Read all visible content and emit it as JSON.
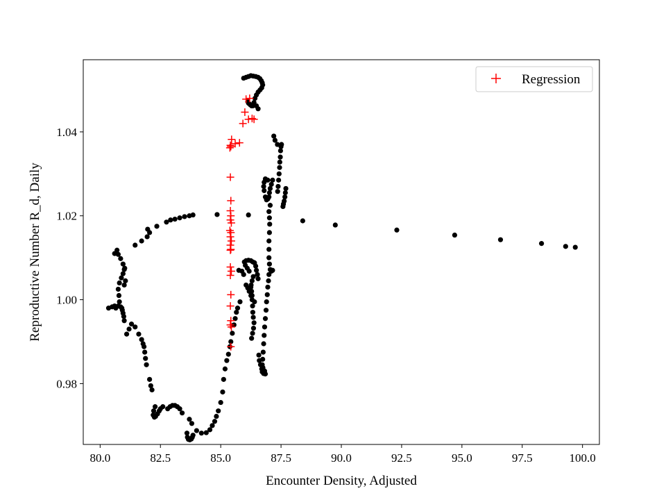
{
  "chart_data": {
    "type": "scatter",
    "title": "",
    "xlabel": "Encounter Density, Adjusted",
    "ylabel": "Reproductive Number R_d, Daily",
    "xlim": [
      79.3,
      100.7
    ],
    "ylim": [
      0.9655,
      1.0572
    ],
    "xticks": [
      80.0,
      82.5,
      85.0,
      87.5,
      90.0,
      92.5,
      95.0,
      97.5,
      100.0
    ],
    "xtick_labels": [
      "80.0",
      "82.5",
      "85.0",
      "87.5",
      "90.0",
      "92.5",
      "95.0",
      "97.5",
      "100.0"
    ],
    "yticks": [
      0.98,
      1.0,
      1.02,
      1.04
    ],
    "ytick_labels": [
      "0.98",
      "1.00",
      "1.02",
      "1.04"
    ],
    "grid": false,
    "legend": {
      "position": "top-right",
      "entries": [
        "Regression"
      ]
    },
    "series": [
      {
        "marker": "circle",
        "color": "#000000",
        "points": [
          [
            99.7,
            1.0125
          ],
          [
            99.3,
            1.0127
          ],
          [
            98.3,
            1.0134
          ],
          [
            96.6,
            1.0143
          ],
          [
            94.7,
            1.0154
          ],
          [
            92.3,
            1.0166
          ],
          [
            89.75,
            1.0178
          ],
          [
            88.4,
            1.0188
          ],
          [
            87.7,
            1.0265
          ],
          [
            87.68,
            1.0255
          ],
          [
            87.66,
            1.0245
          ],
          [
            87.63,
            1.0235
          ],
          [
            87.6,
            1.0228
          ],
          [
            87.58,
            1.0222
          ],
          [
            87.52,
            1.037
          ],
          [
            87.5,
            1.0365
          ],
          [
            87.48,
            1.0355
          ],
          [
            87.47,
            1.034
          ],
          [
            87.45,
            1.0328
          ],
          [
            87.44,
            1.0315
          ],
          [
            87.42,
            1.03
          ],
          [
            87.4,
            1.0285
          ],
          [
            87.38,
            1.027
          ],
          [
            87.36,
            1.0258
          ],
          [
            87.35,
            1.037
          ],
          [
            87.25,
            1.038
          ],
          [
            87.2,
            1.039
          ],
          [
            87.15,
            1.0285
          ],
          [
            87.1,
            1.0275
          ],
          [
            87.05,
            1.0265
          ],
          [
            87.02,
            1.0255
          ],
          [
            87.0,
            1.0245
          ],
          [
            86.95,
            1.024
          ],
          [
            86.9,
            1.0238
          ],
          [
            86.85,
            1.0245
          ],
          [
            86.8,
            1.026
          ],
          [
            86.78,
            1.027
          ],
          [
            86.8,
            1.028
          ],
          [
            86.85,
            1.0288
          ],
          [
            86.95,
            1.0285
          ],
          [
            87.05,
            1.0225
          ],
          [
            87.0,
            1.021
          ],
          [
            87.02,
            1.0195
          ],
          [
            87.03,
            1.018
          ],
          [
            87.02,
            1.016
          ],
          [
            87.0,
            1.014
          ],
          [
            87.0,
            1.012
          ],
          [
            87.0,
            1.01
          ],
          [
            87.02,
            1.0085
          ],
          [
            87.05,
            1.0072
          ],
          [
            87.1,
            1.0068
          ],
          [
            87.15,
            1.007
          ],
          [
            87.0,
            1.006
          ],
          [
            86.98,
            1.0045
          ],
          [
            86.95,
            1.003
          ],
          [
            86.93,
            1.0012
          ],
          [
            86.9,
            0.9995
          ],
          [
            86.88,
            0.9975
          ],
          [
            86.85,
            0.9955
          ],
          [
            86.82,
            0.9935
          ],
          [
            86.8,
            0.9915
          ],
          [
            86.78,
            0.9895
          ],
          [
            86.76,
            0.9875
          ],
          [
            86.74,
            0.9858
          ],
          [
            86.72,
            0.9845
          ],
          [
            86.7,
            0.9835
          ],
          [
            86.72,
            0.9828
          ],
          [
            86.78,
            0.9824
          ],
          [
            86.85,
            0.9823
          ],
          [
            86.82,
            0.983
          ],
          [
            86.75,
            0.9838
          ],
          [
            86.65,
            0.9845
          ],
          [
            86.6,
            0.9855
          ],
          [
            86.58,
            0.9868
          ],
          [
            86.55,
            1.005
          ],
          [
            86.52,
            1.006
          ],
          [
            86.48,
            1.007
          ],
          [
            86.45,
            1.008
          ],
          [
            86.4,
            1.0088
          ],
          [
            86.33,
            1.009
          ],
          [
            86.25,
            1.0093
          ],
          [
            86.15,
            1.0094
          ],
          [
            86.05,
            1.0093
          ],
          [
            85.98,
            1.009
          ],
          [
            86.02,
            1.0082
          ],
          [
            86.1,
            1.0075
          ],
          [
            86.18,
            1.0068
          ],
          [
            86.05,
            1.0035
          ],
          [
            86.12,
            1.0028
          ],
          [
            86.18,
            1.002
          ],
          [
            86.25,
            1.001
          ],
          [
            86.3,
            1.0
          ],
          [
            86.32,
            0.9985
          ],
          [
            86.33,
            0.997
          ],
          [
            86.35,
            0.9958
          ],
          [
            86.38,
            0.9945
          ],
          [
            86.36,
            0.9932
          ],
          [
            86.32,
            0.992
          ],
          [
            86.28,
            0.9908
          ],
          [
            86.35,
            1.0055
          ],
          [
            86.3,
            1.0045
          ],
          [
            86.26,
            1.0035
          ],
          [
            86.25,
            1.003
          ],
          [
            86.28,
            1.002
          ],
          [
            86.3,
            1.001
          ],
          [
            86.4,
            0.9995
          ],
          [
            85.95,
            1.006
          ],
          [
            85.88,
            1.0068
          ],
          [
            85.75,
            1.007
          ],
          [
            85.8,
            0.9995
          ],
          [
            85.7,
            0.998
          ],
          [
            85.65,
            0.997
          ],
          [
            85.6,
            0.9955
          ],
          [
            85.55,
            0.994
          ],
          [
            85.48,
            0.992
          ],
          [
            85.42,
            0.99
          ],
          [
            85.38,
            0.9888
          ],
          [
            85.32,
            0.987
          ],
          [
            85.25,
            0.9855
          ],
          [
            85.18,
            0.9835
          ],
          [
            85.12,
            0.981
          ],
          [
            85.08,
            0.978
          ],
          [
            85.0,
            0.9755
          ],
          [
            84.9,
            0.9735
          ],
          [
            84.82,
            0.9722
          ],
          [
            84.75,
            0.971
          ],
          [
            84.65,
            0.97
          ],
          [
            84.55,
            0.969
          ],
          [
            84.4,
            0.9683
          ],
          [
            84.2,
            0.9682
          ],
          [
            84.0,
            0.9688
          ],
          [
            83.8,
            0.9705
          ],
          [
            83.7,
            0.9715
          ],
          [
            83.85,
            0.9677
          ],
          [
            83.82,
            0.9672
          ],
          [
            83.78,
            0.9668
          ],
          [
            83.72,
            0.9666
          ],
          [
            83.66,
            0.9667
          ],
          [
            83.62,
            0.9672
          ],
          [
            83.6,
            0.9682
          ],
          [
            83.4,
            0.973
          ],
          [
            83.3,
            0.974
          ],
          [
            83.2,
            0.9745
          ],
          [
            83.1,
            0.9748
          ],
          [
            83.0,
            0.9748
          ],
          [
            82.9,
            0.9745
          ],
          [
            82.8,
            0.974
          ],
          [
            82.6,
            0.9745
          ],
          [
            82.5,
            0.974
          ],
          [
            82.45,
            0.9735
          ],
          [
            82.38,
            0.9728
          ],
          [
            82.3,
            0.9722
          ],
          [
            82.25,
            0.972
          ],
          [
            82.2,
            0.9725
          ],
          [
            82.22,
            0.9735
          ],
          [
            82.28,
            0.9745
          ],
          [
            82.15,
            0.9785
          ],
          [
            82.1,
            0.9795
          ],
          [
            82.05,
            0.981
          ],
          [
            81.92,
            0.9845
          ],
          [
            81.88,
            0.986
          ],
          [
            81.85,
            0.9875
          ],
          [
            81.82,
            0.9888
          ],
          [
            81.78,
            0.9895
          ],
          [
            81.72,
            0.9905
          ],
          [
            81.6,
            0.9918
          ],
          [
            81.45,
            0.9935
          ],
          [
            81.3,
            0.9942
          ],
          [
            81.2,
            0.993
          ],
          [
            81.1,
            0.9918
          ],
          [
            81.0,
            0.995
          ],
          [
            80.98,
            0.996
          ],
          [
            80.95,
            0.9968
          ],
          [
            80.92,
            0.9975
          ],
          [
            80.9,
            0.998
          ],
          [
            80.85,
            0.9983
          ],
          [
            80.75,
            0.9985
          ],
          [
            80.6,
            0.9985
          ],
          [
            80.5,
            0.9983
          ],
          [
            80.35,
            0.998
          ],
          [
            80.65,
            0.998
          ],
          [
            80.8,
            0.9995
          ],
          [
            80.78,
            1.001
          ],
          [
            80.75,
            1.0025
          ],
          [
            80.8,
            1.004
          ],
          [
            80.88,
            1.0052
          ],
          [
            80.95,
            1.0062
          ],
          [
            81.0,
            1.0072
          ],
          [
            80.95,
            1.0085
          ],
          [
            80.85,
            1.0098
          ],
          [
            80.75,
            1.0108
          ],
          [
            80.7,
            1.0118
          ],
          [
            80.6,
            1.011
          ],
          [
            81.0,
            1.0035
          ],
          [
            81.05,
            1.0045
          ],
          [
            81.02,
            1.0075
          ],
          [
            81.45,
            1.013
          ],
          [
            81.72,
            1.014
          ],
          [
            81.95,
            1.015
          ],
          [
            82.05,
            1.016
          ],
          [
            81.97,
            1.0168
          ],
          [
            82.35,
            1.0175
          ],
          [
            82.75,
            1.0185
          ],
          [
            82.92,
            1.019
          ],
          [
            83.1,
            1.0192
          ],
          [
            83.3,
            1.0195
          ],
          [
            83.5,
            1.0198
          ],
          [
            83.7,
            1.02
          ],
          [
            83.85,
            1.0202
          ],
          [
            84.85,
            1.0203
          ],
          [
            86.15,
            1.0202
          ],
          [
            85.95,
            1.0528
          ],
          [
            86.05,
            1.053
          ],
          [
            86.15,
            1.0532
          ],
          [
            86.25,
            1.0534
          ],
          [
            86.35,
            1.0533
          ],
          [
            86.45,
            1.0532
          ],
          [
            86.55,
            1.053
          ],
          [
            86.62,
            1.0527
          ],
          [
            86.68,
            1.0522
          ],
          [
            86.72,
            1.0517
          ],
          [
            86.74,
            1.0512
          ],
          [
            86.7,
            1.0505
          ],
          [
            86.63,
            1.05
          ],
          [
            86.55,
            1.0495
          ],
          [
            86.48,
            1.0488
          ],
          [
            86.42,
            1.048
          ],
          [
            86.38,
            1.047
          ],
          [
            86.33,
            1.0462
          ],
          [
            86.28,
            1.0462
          ],
          [
            86.22,
            1.0465
          ],
          [
            86.16,
            1.0468
          ],
          [
            86.12,
            1.0472
          ],
          [
            86.48,
            1.0462
          ],
          [
            86.55,
            1.0455
          ]
        ]
      },
      {
        "name": "Regression",
        "marker": "plus",
        "color": "#ff0000",
        "points": [
          [
            86.2,
            1.048
          ],
          [
            86.05,
            1.0478
          ],
          [
            86.0,
            1.0447
          ],
          [
            86.15,
            1.043
          ],
          [
            86.3,
            1.0432
          ],
          [
            86.38,
            1.043
          ],
          [
            85.92,
            1.042
          ],
          [
            85.78,
            1.0374
          ],
          [
            85.6,
            1.0372
          ],
          [
            85.45,
            1.0382
          ],
          [
            85.4,
            1.0368
          ],
          [
            85.38,
            1.0362
          ],
          [
            85.42,
            1.0365
          ],
          [
            85.4,
            1.0292
          ],
          [
            85.42,
            1.0236
          ],
          [
            85.4,
            1.0212
          ],
          [
            85.42,
            1.02
          ],
          [
            85.4,
            1.019
          ],
          [
            85.44,
            1.0183
          ],
          [
            85.38,
            1.0165
          ],
          [
            85.42,
            1.016
          ],
          [
            85.4,
            1.015
          ],
          [
            85.44,
            1.014
          ],
          [
            85.4,
            1.013
          ],
          [
            85.42,
            1.012
          ],
          [
            85.4,
            1.0118
          ],
          [
            85.4,
            1.0078
          ],
          [
            85.44,
            1.0068
          ],
          [
            85.4,
            1.0058
          ],
          [
            85.42,
            1.0012
          ],
          [
            85.4,
            0.9985
          ],
          [
            85.42,
            0.995
          ],
          [
            85.4,
            0.994
          ],
          [
            85.44,
            0.9935
          ],
          [
            85.42,
            0.9888
          ]
        ]
      }
    ]
  }
}
